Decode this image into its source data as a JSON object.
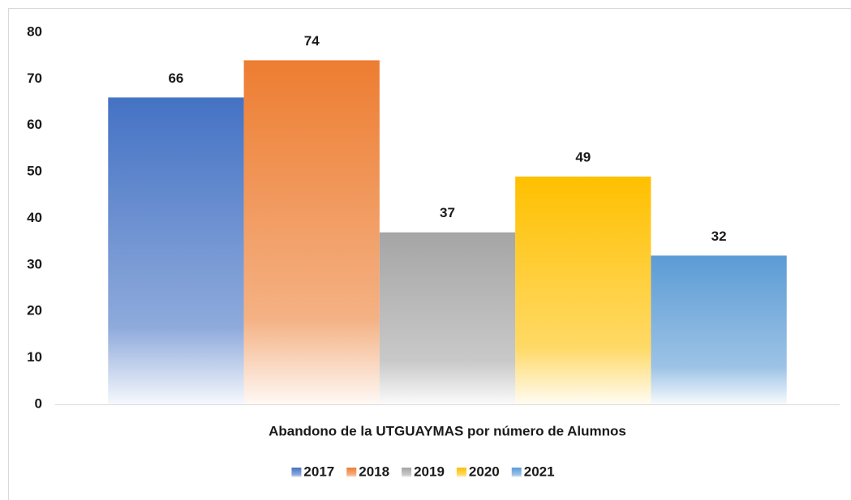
{
  "chart_data": {
    "type": "bar",
    "categories": [
      "Abandono de la UTGUAYMAS por número de Alumnos"
    ],
    "series": [
      {
        "name": "2017",
        "color": "#4472c4",
        "values": [
          66
        ]
      },
      {
        "name": "2018",
        "color": "#ed7d31",
        "values": [
          74
        ]
      },
      {
        "name": "2019",
        "color": "#a5a5a5",
        "values": [
          37
        ]
      },
      {
        "name": "2020",
        "color": "#ffc000",
        "values": [
          49
        ]
      },
      {
        "name": "2021",
        "color": "#5b9bd5",
        "values": [
          32
        ]
      }
    ],
    "ylim": [
      0,
      80
    ],
    "yticks": [
      0,
      10,
      20,
      30,
      40,
      50,
      60,
      70,
      80
    ],
    "grid": false,
    "legend": "bottom"
  }
}
